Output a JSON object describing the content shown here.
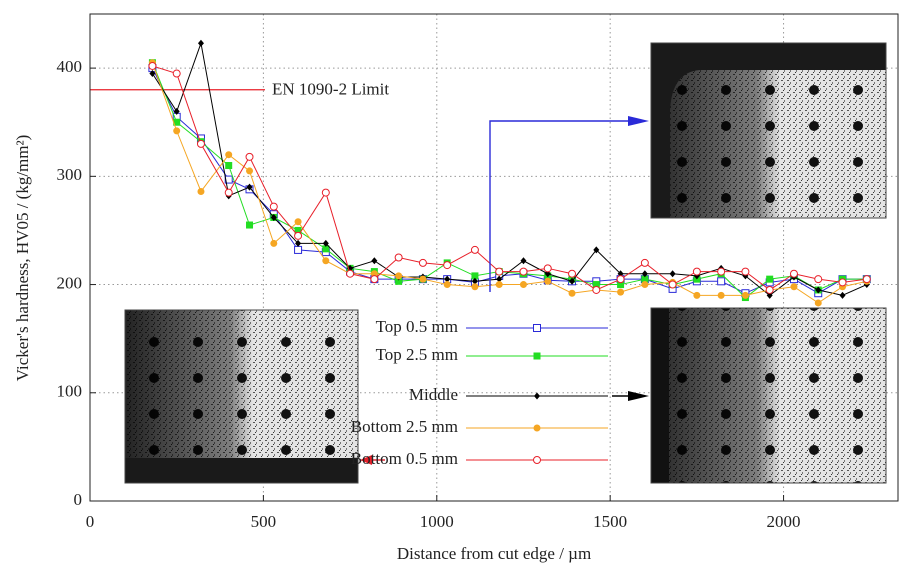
{
  "chart_data": {
    "type": "line",
    "x_label": "Distance from cut edge / µm",
    "y_label": "Vicker's hardness, HV05 / (kg/mm²)",
    "xlim": [
      0,
      2330
    ],
    "xticks": [
      0,
      500,
      1000,
      1500,
      2000
    ],
    "ylim": [
      0,
      450
    ],
    "yticks": [
      0,
      100,
      200,
      300,
      400
    ],
    "grid": true,
    "reference_line": {
      "value": 380,
      "label": "EN 1090-2 Limit",
      "color": "#e8202a"
    },
    "x": [
      180,
      250,
      320,
      400,
      460,
      530,
      600,
      680,
      750,
      820,
      890,
      960,
      1030,
      1110,
      1180,
      1250,
      1320,
      1390,
      1460,
      1530,
      1600,
      1680,
      1750,
      1820,
      1890,
      1960,
      2030,
      2100,
      2170,
      2240
    ],
    "series": [
      {
        "name": "Top 0.5 mm",
        "color": "#2a2ad8",
        "marker": "square-open",
        "values": [
          400,
          355,
          335,
          297,
          288,
          265,
          232,
          230,
          212,
          205,
          205,
          205,
          205,
          202,
          208,
          210,
          204,
          203,
          203,
          205,
          205,
          196,
          203,
          203,
          192,
          202,
          205,
          192,
          205,
          205
        ]
      },
      {
        "name": "Top 2.5 mm",
        "color": "#22dd22",
        "marker": "square",
        "values": [
          405,
          350,
          332,
          310,
          255,
          262,
          250,
          233,
          215,
          212,
          203,
          205,
          220,
          208,
          212,
          210,
          208,
          205,
          200,
          200,
          205,
          200,
          205,
          210,
          188,
          205,
          208,
          195,
          205,
          205
        ]
      },
      {
        "name": "Middle",
        "color": "#000000",
        "marker": "diamond",
        "values": [
          395,
          360,
          423,
          282,
          290,
          262,
          238,
          238,
          215,
          222,
          207,
          207,
          205,
          203,
          205,
          222,
          210,
          203,
          232,
          210,
          210,
          210,
          208,
          215,
          208,
          190,
          207,
          195,
          190,
          200
        ]
      },
      {
        "name": "Bottom 2.5 mm",
        "color": "#f5a623",
        "marker": "circle",
        "values": [
          405,
          342,
          286,
          320,
          305,
          238,
          258,
          222,
          210,
          210,
          208,
          205,
          200,
          198,
          200,
          200,
          203,
          192,
          195,
          193,
          200,
          202,
          190,
          190,
          190,
          195,
          198,
          183,
          198,
          203
        ]
      },
      {
        "name": "Bottom 0.5 mm",
        "color": "#e8202a",
        "marker": "circle-open",
        "values": [
          402,
          395,
          330,
          285,
          318,
          272,
          245,
          285,
          210,
          205,
          225,
          220,
          218,
          232,
          212,
          212,
          215,
          210,
          195,
          205,
          220,
          200,
          212,
          212,
          212,
          195,
          210,
          205,
          202,
          205
        ]
      }
    ]
  }
}
